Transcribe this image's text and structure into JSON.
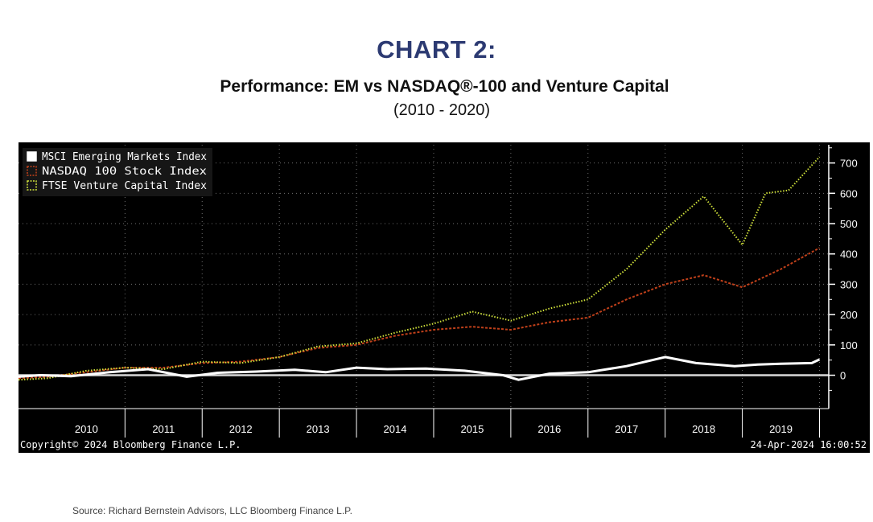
{
  "header": {
    "title": "CHART 2:",
    "subtitle": "Performance: EM vs NASDAQ®-100 and Venture Capital",
    "period": "(2010 - 2020)"
  },
  "footer": {
    "copyright": "Copyright© 2024 Bloomberg Finance L.P.",
    "timestamp": "24-Apr-2024 16:00:52",
    "source": "Source: Richard Bernstein Advisors, LLC Bloomberg Finance L.P."
  },
  "colors": {
    "panel_bg": "#000000",
    "msci": "#ffffff",
    "nasdaq": "#c0401a",
    "ftse": "#cfe03a",
    "axis_text": "#ffffff",
    "grid": "#6e6e6e"
  },
  "chart_data": {
    "type": "line",
    "title": "",
    "xlabel": "",
    "ylabel": "",
    "x_range": [
      2009.62,
      2020.12
    ],
    "ylim": [
      -110,
      760
    ],
    "y_ticks": [
      0,
      100,
      200,
      300,
      400,
      500,
      600,
      700
    ],
    "x_ticks": [
      "2010",
      "2011",
      "2012",
      "2013",
      "2014",
      "2015",
      "2016",
      "2017",
      "2018",
      "2019"
    ],
    "grid": true,
    "legend_position": "top-left",
    "series": [
      {
        "name": "MSCI Emerging Markets Index",
        "style": "solid",
        "x": [
          2009.62,
          2009.9,
          2010.3,
          2010.8,
          2011.3,
          2011.8,
          2012.2,
          2012.7,
          2013.2,
          2013.6,
          2014.0,
          2014.4,
          2014.9,
          2015.4,
          2015.9,
          2016.1,
          2016.5,
          2017.0,
          2017.5,
          2018.0,
          2018.4,
          2018.9,
          2019.2,
          2019.5,
          2019.9,
          2020.0
        ],
        "y": [
          -5,
          0,
          -3,
          10,
          20,
          -5,
          8,
          12,
          18,
          10,
          25,
          20,
          22,
          15,
          0,
          -15,
          5,
          10,
          30,
          60,
          40,
          30,
          35,
          38,
          40,
          52
        ]
      },
      {
        "name": "NASDAQ 100 Stock Index",
        "style": "dashed",
        "x": [
          2009.62,
          2010.0,
          2010.5,
          2011.0,
          2011.5,
          2012.0,
          2012.5,
          2013.0,
          2013.5,
          2014.0,
          2014.5,
          2015.0,
          2015.5,
          2016.0,
          2016.5,
          2017.0,
          2017.5,
          2018.0,
          2018.5,
          2019.0,
          2019.5,
          2020.0
        ],
        "y": [
          -10,
          -5,
          10,
          25,
          25,
          40,
          45,
          60,
          90,
          100,
          130,
          150,
          160,
          150,
          175,
          190,
          250,
          300,
          330,
          290,
          350,
          420
        ]
      },
      {
        "name": "FTSE Venture Capital Index",
        "style": "dotted",
        "x": [
          2009.62,
          2010.0,
          2010.5,
          2011.0,
          2011.5,
          2012.0,
          2012.5,
          2013.0,
          2013.5,
          2014.0,
          2014.5,
          2015.0,
          2015.5,
          2016.0,
          2016.5,
          2017.0,
          2017.5,
          2018.0,
          2018.5,
          2019.0,
          2019.3,
          2019.6,
          2020.0
        ],
        "y": [
          -15,
          -10,
          15,
          25,
          20,
          45,
          40,
          60,
          95,
          105,
          140,
          170,
          210,
          180,
          220,
          250,
          350,
          480,
          590,
          430,
          600,
          610,
          720
        ]
      }
    ]
  }
}
